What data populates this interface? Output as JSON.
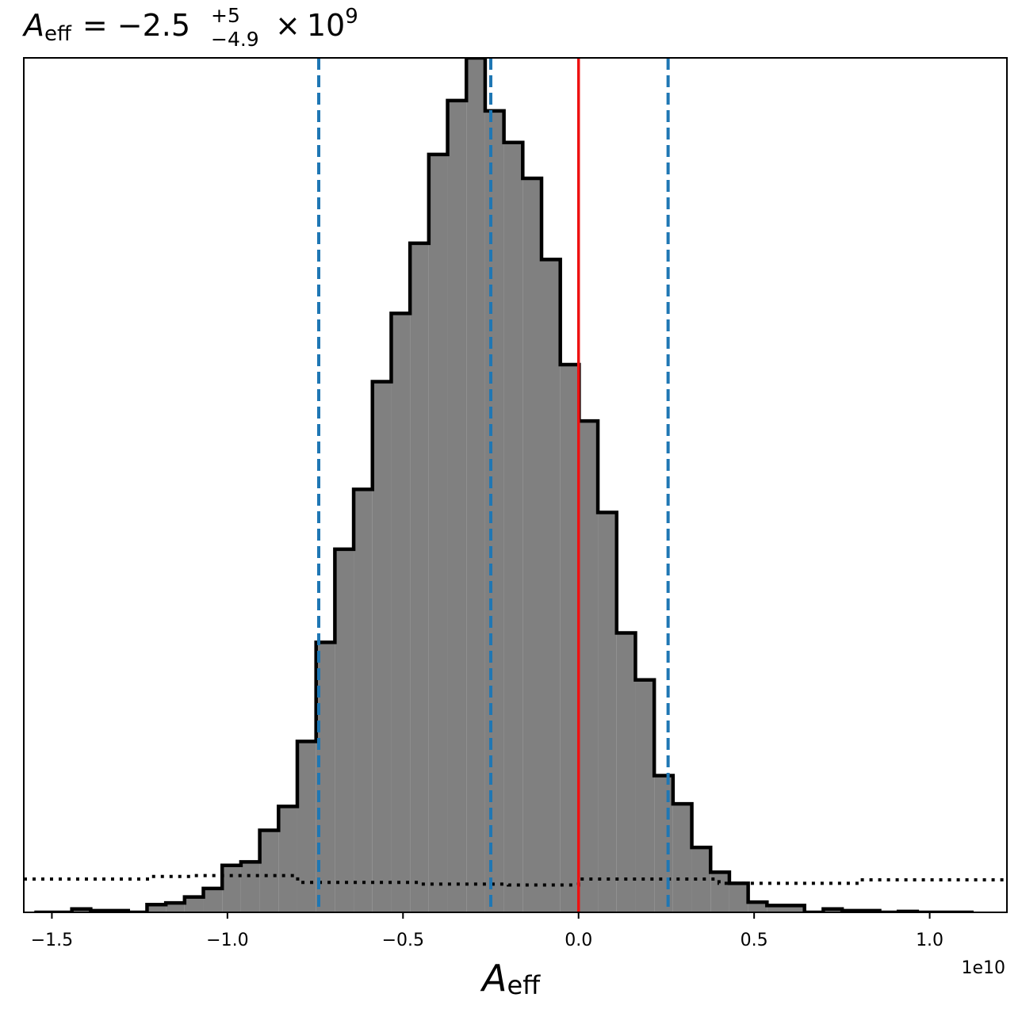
{
  "chart_data": {
    "type": "histogram",
    "title": {
      "symbol": "A",
      "subscript": "eff",
      "equals": "=",
      "median": "−2.5",
      "upper_error": "+5",
      "lower_error": "−4.9",
      "times": "×",
      "scale_base": "10",
      "scale_exp": "9"
    },
    "xlabel": {
      "symbol": "A",
      "subscript": "eff"
    },
    "x_offset_label": "1e10",
    "xlim": [
      -15800000000.0,
      12200000000.0
    ],
    "ylim": [
      0,
      1.0
    ],
    "x_ticks": [
      {
        "value": -15000000000.0,
        "label": "−1.5"
      },
      {
        "value": -10000000000.0,
        "label": "−1.0"
      },
      {
        "value": -5000000000.0,
        "label": "−0.5"
      },
      {
        "value": 0.0,
        "label": "0.0"
      },
      {
        "value": 5000000000.0,
        "label": "0.5"
      },
      {
        "value": 10000000000.0,
        "label": "1.0"
      }
    ],
    "y_ticks_shown": false,
    "posterior_histogram": {
      "bin_edges": [
        -15500000000.0,
        -14965000000.0,
        -14430000000.0,
        -13895000000.0,
        -13360000000.0,
        -12825000000.0,
        -12290000000.0,
        -11755000000.0,
        -11220000000.0,
        -10685000000.0,
        -10150000000.0,
        -9615000000.0,
        -9080000000.0,
        -8545000000.0,
        -8010000000.0,
        -7475000000.0,
        -6940000000.0,
        -6405000000.0,
        -5870000000.0,
        -5335000000.0,
        -4800000000.0,
        -4265000000.0,
        -3730000000.0,
        -3195000000.0,
        -2660000000.0,
        -2125000000.0,
        -1590000000.0,
        -1055000000.0,
        -520000000.0,
        15000000.0,
        550000000.0,
        1085000000.0,
        1620000000.0,
        2155000000.0,
        2690000000.0,
        3225000000.0,
        3760000000.0,
        4295000000.0,
        4830000000.0,
        5365000000.0,
        5900000000.0,
        6435000000.0,
        6970000000.0,
        7505000000.0,
        8040000000.0,
        8575000000.0,
        9110000000.0,
        9645000000.0,
        10180000000.0,
        10715000000.0,
        11250000000.0
      ],
      "heights": [
        0.0,
        0.0,
        0.004,
        0.002,
        0.002,
        0.0,
        0.009,
        0.011,
        0.018,
        0.028,
        0.055,
        0.059,
        0.096,
        0.124,
        0.2,
        0.316,
        0.425,
        0.495,
        0.621,
        0.701,
        0.783,
        0.887,
        0.95,
        1.0,
        0.938,
        0.901,
        0.859,
        0.764,
        0.641,
        0.575,
        0.468,
        0.327,
        0.272,
        0.16,
        0.127,
        0.076,
        0.047,
        0.034,
        0.012,
        0.008,
        0.008,
        0.0,
        0.004,
        0.002,
        0.002,
        0.0,
        0.001,
        0.0,
        0.0,
        0.0
      ],
      "fill_color": "#808080",
      "edge_color": "#000000"
    },
    "prior_histogram": {
      "bin_edges": [
        -15800000000.0,
        -12200000000.0,
        -11000000000.0,
        -8000000000.0,
        -4500000000.0,
        -2000000000.0,
        0.0,
        4000000000.0,
        8000000000.0,
        12200000000.0
      ],
      "heights": [
        0.039,
        0.042,
        0.043,
        0.035,
        0.033,
        0.032,
        0.039,
        0.034,
        0.038
      ],
      "style": "dotted",
      "color": "#000000"
    },
    "vlines": [
      {
        "x": -7400000000.0,
        "style": "dashed",
        "color": "#1f77b4"
      },
      {
        "x": -2500000000.0,
        "style": "dashed",
        "color": "#1f77b4"
      },
      {
        "x": 2550000000.0,
        "style": "dashed",
        "color": "#1f77b4"
      },
      {
        "x": 0.0,
        "style": "solid",
        "color": "#ee1111"
      }
    ],
    "grid": false,
    "legend": "none"
  }
}
